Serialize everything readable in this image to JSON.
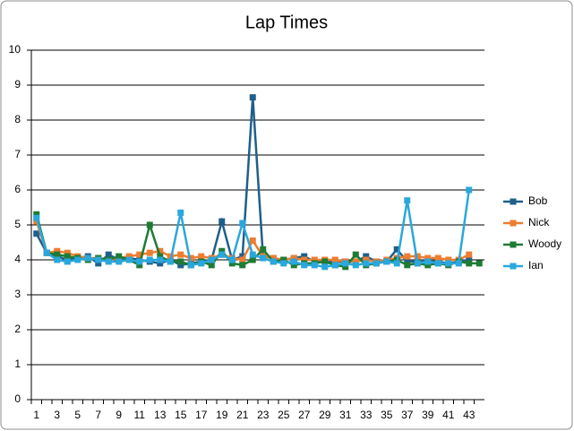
{
  "chart_data": {
    "type": "line",
    "title": "Lap Times",
    "categories": [
      1,
      null,
      3,
      null,
      5,
      null,
      7,
      null,
      9,
      null,
      11,
      null,
      13,
      null,
      15,
      null,
      17,
      null,
      19,
      null,
      21,
      null,
      23,
      null,
      25,
      null,
      27,
      null,
      29,
      null,
      31,
      null,
      33,
      null,
      35,
      null,
      37,
      null,
      39,
      null,
      41,
      null,
      43,
      null
    ],
    "series": [
      {
        "name": "Bob",
        "color": "#1f5f8b",
        "values": [
          4.75,
          4.2,
          4.1,
          4.0,
          4.05,
          4.1,
          3.9,
          4.15,
          4.0,
          4.05,
          4.0,
          3.95,
          3.9,
          4.0,
          3.85,
          3.9,
          3.95,
          4.0,
          5.1,
          4.0,
          4.1,
          8.65,
          4.1,
          4.05,
          4.0,
          4.05,
          4.1,
          3.95,
          3.95,
          3.95,
          3.95,
          3.95,
          4.1,
          3.95,
          3.95,
          4.3,
          3.95,
          3.95,
          3.95,
          3.95,
          3.9,
          3.95,
          4.0,
          null
        ]
      },
      {
        "name": "Nick",
        "color": "#ed7d31",
        "values": [
          5.1,
          4.2,
          4.25,
          4.2,
          4.1,
          4.05,
          4.05,
          4.0,
          4.05,
          4.1,
          4.15,
          4.2,
          4.25,
          4.1,
          4.15,
          4.05,
          4.1,
          4.05,
          4.15,
          4.05,
          4.0,
          4.55,
          4.1,
          4.05,
          4.0,
          4.05,
          4.0,
          4.0,
          4.0,
          4.0,
          3.95,
          3.95,
          4.0,
          3.95,
          4.0,
          4.05,
          4.1,
          4.1,
          4.05,
          4.05,
          4.0,
          4.0,
          4.15,
          null
        ]
      },
      {
        "name": "Woody",
        "color": "#1e7b34",
        "values": [
          5.3,
          4.2,
          4.15,
          4.1,
          4.05,
          4.0,
          4.05,
          4.0,
          4.1,
          4.0,
          3.85,
          5.0,
          4.1,
          3.95,
          3.95,
          3.85,
          3.95,
          3.85,
          4.25,
          3.9,
          3.85,
          4.0,
          4.3,
          3.95,
          4.0,
          3.85,
          3.9,
          3.9,
          3.95,
          3.85,
          3.8,
          4.15,
          3.85,
          3.9,
          3.95,
          4.0,
          3.85,
          3.9,
          3.85,
          3.9,
          3.85,
          3.95,
          3.9,
          3.9
        ]
      },
      {
        "name": "Ian",
        "color": "#2aa7dc",
        "values": [
          5.2,
          4.2,
          4.0,
          3.95,
          4.0,
          4.05,
          4.0,
          3.95,
          3.95,
          4.0,
          3.95,
          4.0,
          4.0,
          3.95,
          5.35,
          3.85,
          3.9,
          4.0,
          4.15,
          4.0,
          5.05,
          4.15,
          4.05,
          3.95,
          3.9,
          3.95,
          3.85,
          3.85,
          3.8,
          3.85,
          3.9,
          3.85,
          3.9,
          3.9,
          3.95,
          3.9,
          5.7,
          3.9,
          3.95,
          3.9,
          3.9,
          3.9,
          6.0,
          null
        ]
      }
    ],
    "ylim": [
      0,
      10
    ],
    "yticks": [
      0,
      1,
      2,
      3,
      4,
      5,
      6,
      7,
      8,
      9,
      10
    ],
    "grid": true,
    "legend": "right"
  }
}
